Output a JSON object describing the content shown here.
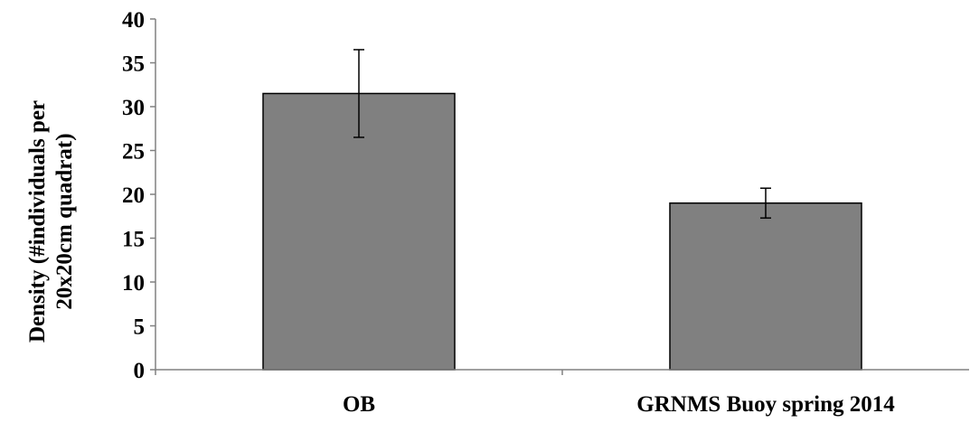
{
  "chart_data": {
    "type": "bar",
    "title": "",
    "xlabel": "",
    "ylabel_lines": [
      "Density (#individuals per",
      "20x20cm quadrat)"
    ],
    "categories": [
      "OB",
      "GRNMS Buoy spring 2014"
    ],
    "values": [
      31.5,
      19
    ],
    "error_bars": [
      5,
      1.7
    ],
    "ylim": [
      0,
      40
    ],
    "yticks": [
      0,
      5,
      10,
      15,
      20,
      25,
      30,
      35,
      40
    ],
    "grid": false,
    "legend": "none",
    "colors": {
      "bar_fill": "#808080",
      "bar_stroke": "#000000",
      "axis": "#808080",
      "error_bar": "#000000"
    }
  }
}
